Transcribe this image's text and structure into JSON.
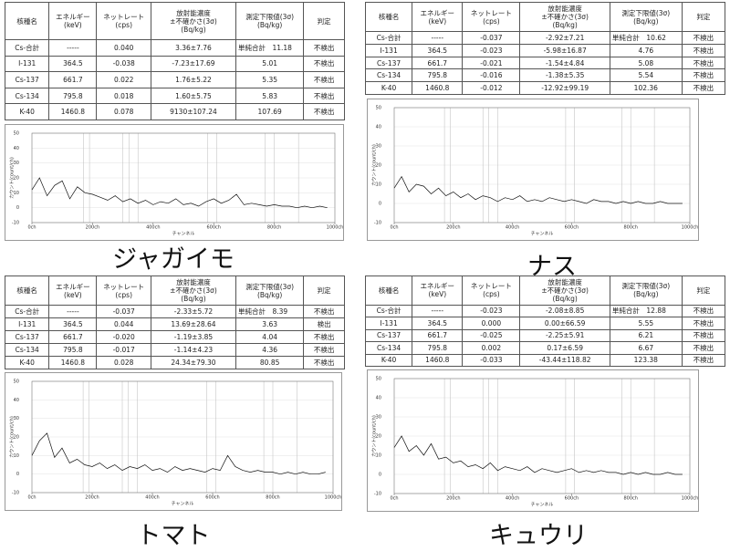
{
  "panels": [
    {
      "label": "ジャガイモ",
      "table": {
        "header": [
          [
            "核種名"
          ],
          [
            "エネルギー",
            "(keV)"
          ],
          [
            "ネットレート",
            "(cps)"
          ],
          [
            "放射能濃度",
            "±不確かさ(3σ)",
            "(Bq/kg)"
          ],
          [
            "測定下限値(3σ)",
            "(Bq/kg)"
          ],
          [
            "判定"
          ]
        ],
        "rows": [
          [
            "Cs-合計",
            "-----",
            "0.040",
            "3.36±7.76",
            "単純合計　11.18",
            "不検出"
          ],
          [
            "I-131",
            "364.5",
            "-0.038",
            "-7.23±17.69",
            "5.01",
            "不検出"
          ],
          [
            "Cs-137",
            "661.7",
            "0.022",
            "1.76±5.22",
            "5.35",
            "不検出"
          ],
          [
            "Cs-134",
            "795.8",
            "0.018",
            "1.60±5.75",
            "5.83",
            "不検出"
          ],
          [
            "K-40",
            "1460.8",
            "0.078",
            "9130±107.24",
            "107.69",
            "不検出"
          ]
        ]
      },
      "spectrum": {
        "type": "line",
        "y_label": "カウント(count/ch)",
        "x_label": "チャンネル",
        "x": [
          0,
          25,
          50,
          75,
          100,
          125,
          150,
          175,
          200,
          225,
          250,
          275,
          300,
          325,
          350,
          375,
          400,
          425,
          450,
          475,
          500,
          525,
          550,
          575,
          600,
          625,
          650,
          675,
          700,
          725,
          750,
          775,
          800,
          825,
          850,
          875,
          900,
          925,
          950,
          975
        ],
        "values": [
          12,
          20,
          8,
          15,
          18,
          6,
          14,
          10,
          9,
          7,
          5,
          8,
          4,
          6,
          3,
          5,
          2,
          4,
          3,
          6,
          2,
          3,
          1,
          4,
          6,
          3,
          5,
          9,
          2,
          3,
          2,
          1,
          2,
          1,
          1,
          0,
          1,
          0,
          1,
          0
        ],
        "xlim": [
          0,
          1000
        ],
        "ylim": [
          -10,
          50
        ],
        "xticks": [
          {
            "value": 0,
            "label": "0ch"
          },
          {
            "value": 200,
            "label": "200ch"
          },
          {
            "value": 400,
            "label": "400ch"
          },
          {
            "value": 600,
            "label": "600ch"
          },
          {
            "value": 800,
            "label": "800ch"
          },
          {
            "value": 1000,
            "label": "1000ch"
          }
        ],
        "yticks": [
          -10,
          0,
          10,
          20,
          30,
          40,
          50
        ],
        "color": "#111111"
      }
    },
    {
      "label": "ナス",
      "table": {
        "header": [
          [
            "核種名"
          ],
          [
            "エネルギー",
            "(keV)"
          ],
          [
            "ネットレート",
            "(cps)"
          ],
          [
            "放射能濃度",
            "±不確かさ(3σ)",
            "(Bq/kg)"
          ],
          [
            "測定下限値(3σ)",
            "(Bq/kg)"
          ],
          [
            "判定"
          ]
        ],
        "rows": [
          [
            "Cs-合計",
            "-----",
            "-0.037",
            "-2.92±7.21",
            "単純合計　10.62",
            "不検出"
          ],
          [
            "I-131",
            "364.5",
            "-0.023",
            "-5.98±16.87",
            "4.76",
            "不検出"
          ],
          [
            "Cs-137",
            "661.7",
            "-0.021",
            "-1.54±4.84",
            "5.08",
            "不検出"
          ],
          [
            "Cs-134",
            "795.8",
            "-0.016",
            "-1.38±5.35",
            "5.54",
            "不検出"
          ],
          [
            "K-40",
            "1460.8",
            "-0.012",
            "-12.92±99.19",
            "102.36",
            "不検出"
          ]
        ]
      },
      "spectrum": {
        "type": "line",
        "y_label": "カウント(count/ch)",
        "x_label": "チャンネル",
        "x": [
          0,
          25,
          50,
          75,
          100,
          125,
          150,
          175,
          200,
          225,
          250,
          275,
          300,
          325,
          350,
          375,
          400,
          425,
          450,
          475,
          500,
          525,
          550,
          575,
          600,
          625,
          650,
          675,
          700,
          725,
          750,
          775,
          800,
          825,
          850,
          875,
          900,
          925,
          950,
          975
        ],
        "values": [
          8,
          14,
          6,
          10,
          9,
          5,
          8,
          4,
          6,
          3,
          5,
          2,
          4,
          3,
          1,
          3,
          2,
          4,
          1,
          2,
          1,
          3,
          2,
          1,
          2,
          1,
          0,
          2,
          1,
          1,
          0,
          1,
          0,
          1,
          0,
          0,
          1,
          0,
          0,
          0
        ],
        "xlim": [
          0,
          1000
        ],
        "ylim": [
          -10,
          50
        ],
        "xticks": [
          {
            "value": 0,
            "label": "0ch"
          },
          {
            "value": 200,
            "label": "200ch"
          },
          {
            "value": 400,
            "label": "400ch"
          },
          {
            "value": 600,
            "label": "600ch"
          },
          {
            "value": 800,
            "label": "800ch"
          },
          {
            "value": 1000,
            "label": "1000ch"
          }
        ],
        "yticks": [
          -10,
          0,
          10,
          20,
          30,
          40,
          50
        ],
        "color": "#111111"
      }
    },
    {
      "label": "トマト",
      "table": {
        "header": [
          [
            "核種名"
          ],
          [
            "エネルギー",
            "(keV)"
          ],
          [
            "ネットレート",
            "(cps)"
          ],
          [
            "放射能濃度",
            "±不確かさ(3σ)",
            "(Bq/kg)"
          ],
          [
            "測定下限値(3σ)",
            "(Bq/kg)"
          ],
          [
            "判定"
          ]
        ],
        "rows": [
          [
            "Cs-合計",
            "-----",
            "-0.037",
            "-2.33±5.72",
            "単純合計　8.39",
            "不検出"
          ],
          [
            "I-131",
            "364.5",
            "0.044",
            "13.69±28.64",
            "3.63",
            "検出"
          ],
          [
            "Cs-137",
            "661.7",
            "-0.020",
            "-1.19±3.85",
            "4.04",
            "不検出"
          ],
          [
            "Cs-134",
            "795.8",
            "-0.017",
            "-1.14±4.23",
            "4.36",
            "不検出"
          ],
          [
            "K-40",
            "1460.8",
            "0.028",
            "24.34±79.30",
            "80.85",
            "不検出"
          ]
        ]
      },
      "spectrum": {
        "type": "line",
        "y_label": "カウント(count/ch)",
        "x_label": "チャンネル",
        "x": [
          0,
          25,
          50,
          75,
          100,
          125,
          150,
          175,
          200,
          225,
          250,
          275,
          300,
          325,
          350,
          375,
          400,
          425,
          450,
          475,
          500,
          525,
          550,
          575,
          600,
          625,
          650,
          675,
          700,
          725,
          750,
          775,
          800,
          825,
          850,
          875,
          900,
          925,
          950,
          975
        ],
        "values": [
          10,
          18,
          22,
          9,
          14,
          6,
          8,
          5,
          4,
          6,
          3,
          5,
          2,
          4,
          3,
          5,
          2,
          3,
          1,
          4,
          2,
          3,
          2,
          1,
          3,
          2,
          10,
          4,
          2,
          1,
          2,
          1,
          1,
          0,
          1,
          0,
          1,
          0,
          0,
          1
        ],
        "xlim": [
          0,
          1000
        ],
        "ylim": [
          -10,
          50
        ],
        "xticks": [
          {
            "value": 0,
            "label": "0ch"
          },
          {
            "value": 200,
            "label": "200ch"
          },
          {
            "value": 400,
            "label": "400ch"
          },
          {
            "value": 600,
            "label": "600ch"
          },
          {
            "value": 800,
            "label": "800ch"
          },
          {
            "value": 1000,
            "label": "1000ch"
          }
        ],
        "yticks": [
          -10,
          0,
          10,
          20,
          30,
          40,
          50
        ],
        "color": "#111111"
      }
    },
    {
      "label": "キュウリ",
      "table": {
        "header": [
          [
            "核種名"
          ],
          [
            "エネルギー",
            "(keV)"
          ],
          [
            "ネットレート",
            "(cps)"
          ],
          [
            "放射能濃度",
            "±不確かさ(3σ)",
            "(Bq/kg)"
          ],
          [
            "測定下限値(3σ)",
            "(Bq/kg)"
          ],
          [
            "判定"
          ]
        ],
        "rows": [
          [
            "Cs-合計",
            "-----",
            "-0.023",
            "-2.08±8.85",
            "単純合計　12.88",
            "不検出"
          ],
          [
            "I-131",
            "364.5",
            "0.000",
            "0.00±66.59",
            "5.55",
            "不検出"
          ],
          [
            "Cs-137",
            "661.7",
            "-0.025",
            "-2.25±5.91",
            "6.21",
            "不検出"
          ],
          [
            "Cs-134",
            "795.8",
            "0.002",
            "0.17±6.59",
            "6.67",
            "不検出"
          ],
          [
            "K-40",
            "1460.8",
            "-0.033",
            "-43.44±118.82",
            "123.38",
            "不検出"
          ]
        ]
      },
      "spectrum": {
        "type": "line",
        "y_label": "カウント(count/ch)",
        "x_label": "チャンネル",
        "x": [
          0,
          25,
          50,
          75,
          100,
          125,
          150,
          175,
          200,
          225,
          250,
          275,
          300,
          325,
          350,
          375,
          400,
          425,
          450,
          475,
          500,
          525,
          550,
          575,
          600,
          625,
          650,
          675,
          700,
          725,
          750,
          775,
          800,
          825,
          850,
          875,
          900,
          925,
          950,
          975
        ],
        "values": [
          14,
          20,
          12,
          15,
          10,
          16,
          8,
          9,
          6,
          7,
          4,
          5,
          3,
          6,
          2,
          4,
          3,
          2,
          4,
          1,
          3,
          2,
          1,
          2,
          3,
          1,
          2,
          1,
          2,
          1,
          1,
          0,
          1,
          0,
          1,
          0,
          0,
          1,
          0,
          0
        ],
        "xlim": [
          0,
          1000
        ],
        "ylim": [
          -10,
          50
        ],
        "xticks": [
          {
            "value": 0,
            "label": "0ch"
          },
          {
            "value": 200,
            "label": "200ch"
          },
          {
            "value": 400,
            "label": "400ch"
          },
          {
            "value": 600,
            "label": "600ch"
          },
          {
            "value": 800,
            "label": "800ch"
          },
          {
            "value": 1000,
            "label": "1000ch"
          }
        ],
        "yticks": [
          -10,
          0,
          10,
          20,
          30,
          40,
          50
        ],
        "color": "#111111"
      }
    }
  ]
}
